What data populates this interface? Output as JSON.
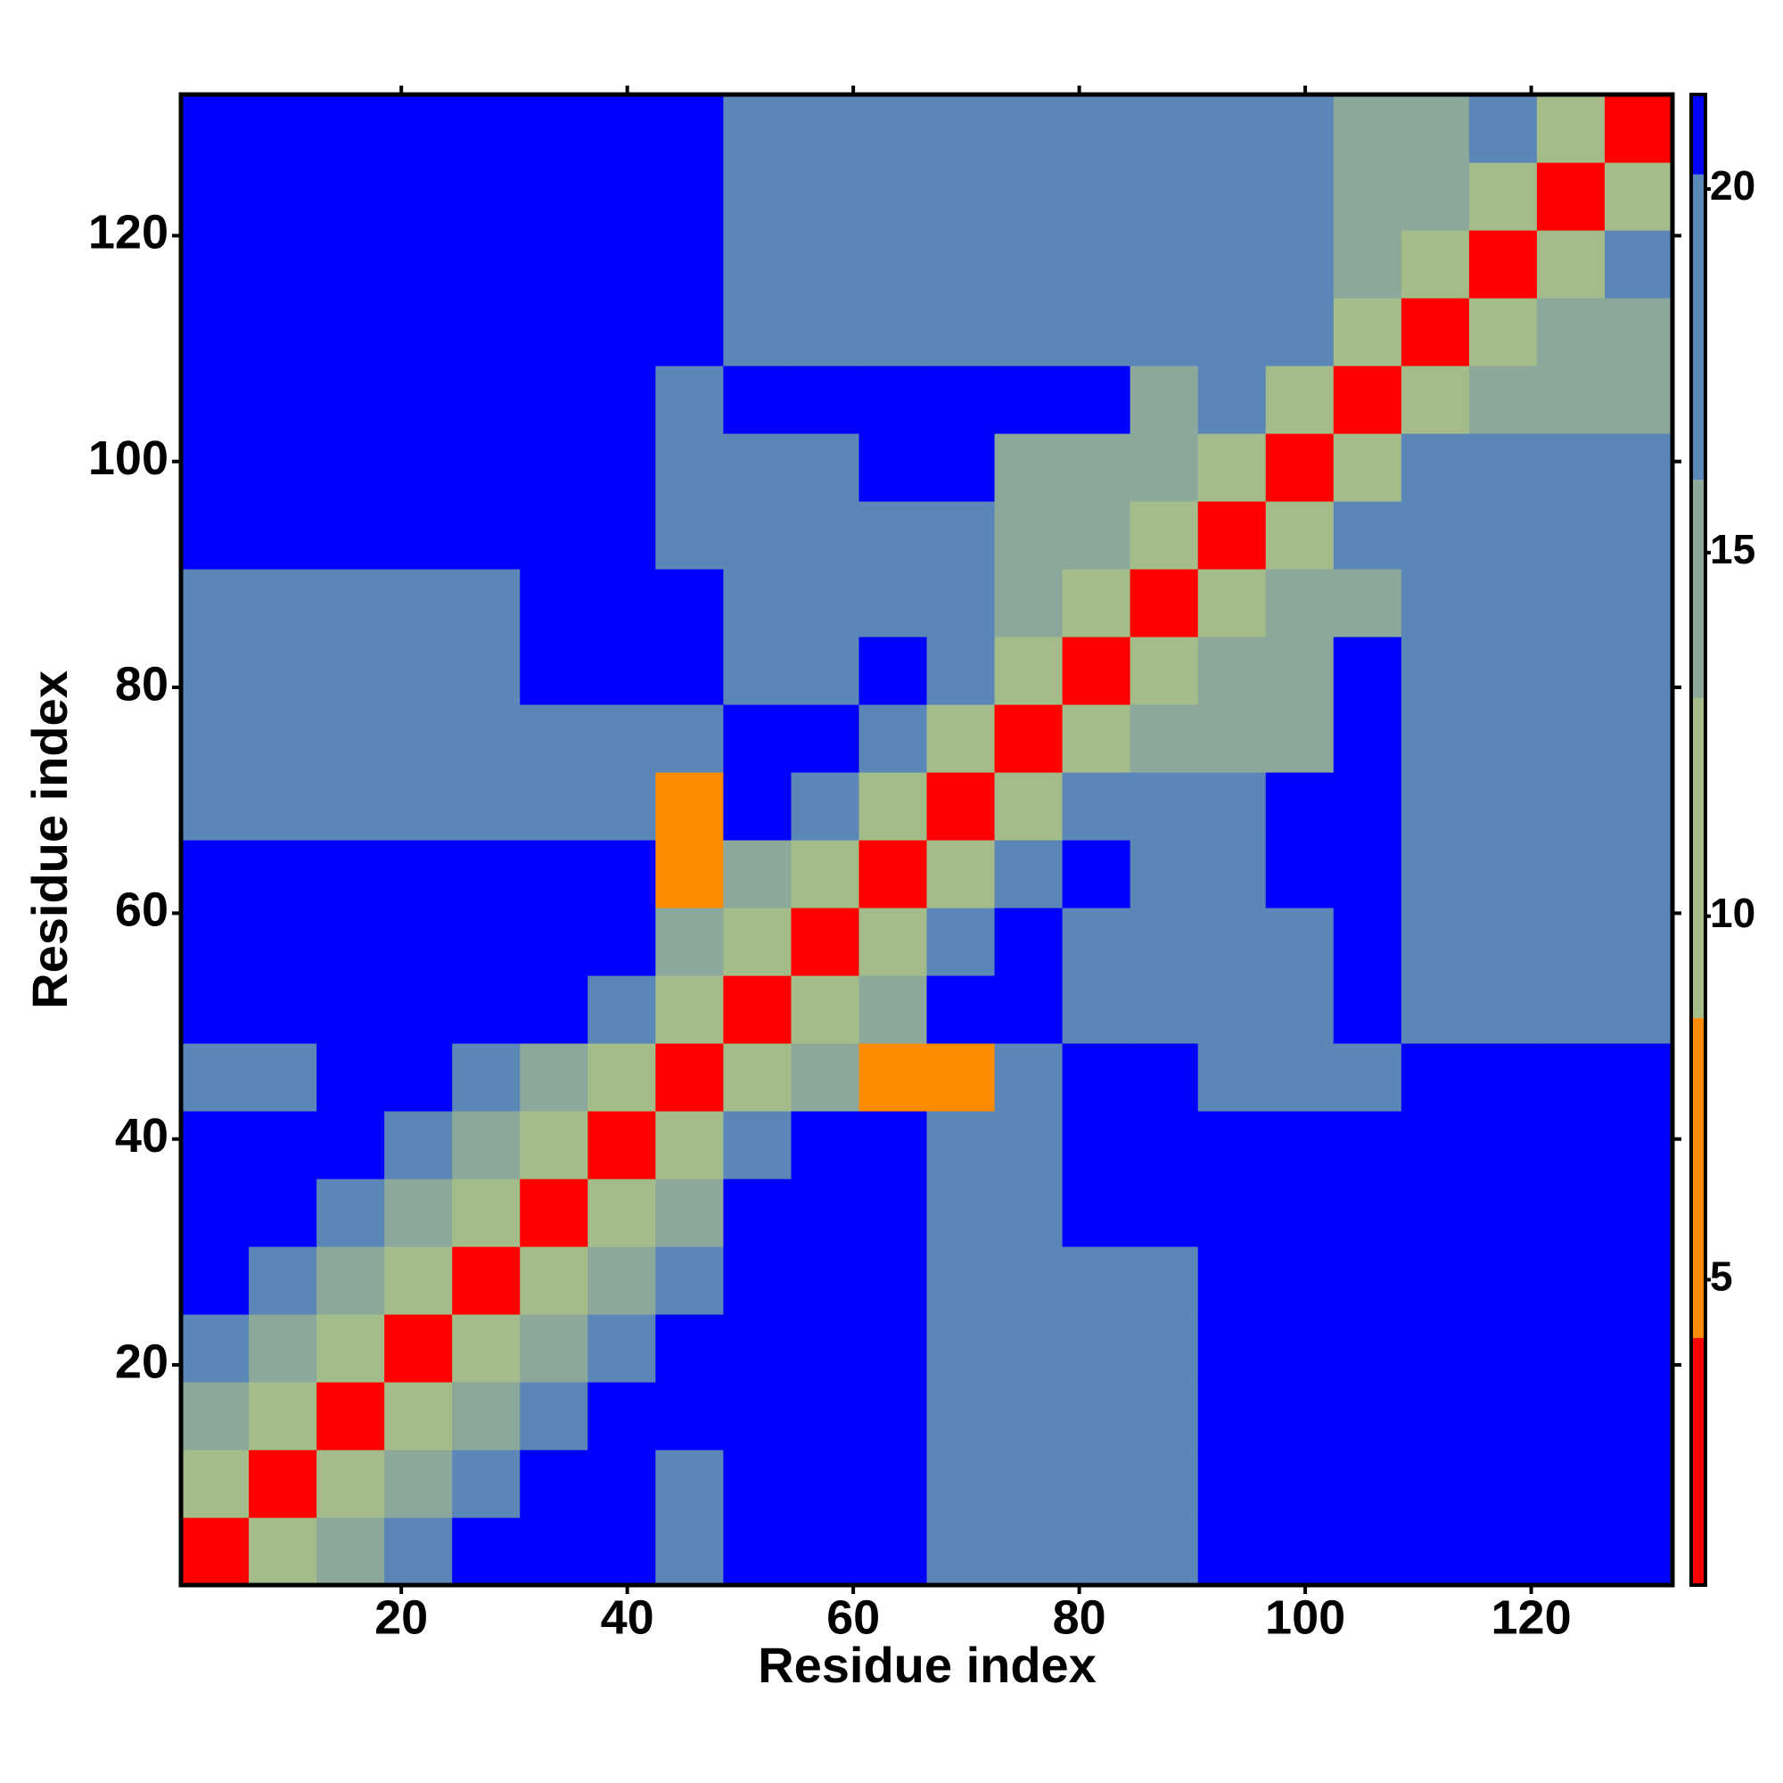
{
  "chart_data": {
    "type": "heatmap",
    "xlabel": "Residue index",
    "ylabel": "Residue index",
    "x_bins": [
      0.5,
      6.5,
      12.5,
      18.5,
      24.5,
      30.5,
      36.5,
      42.5,
      48.5,
      54.5,
      60.5,
      66.5,
      72.5,
      78.5,
      84.5,
      90.5,
      96.5,
      102.5,
      108.5,
      114.5,
      120.5,
      126.5,
      132.5
    ],
    "y_bins": [
      0.5,
      6.5,
      12.5,
      18.5,
      24.5,
      30.5,
      36.5,
      42.5,
      48.5,
      54.5,
      60.5,
      66.5,
      72.5,
      78.5,
      84.5,
      90.5,
      96.5,
      102.5,
      108.5,
      114.5,
      120.5,
      126.5,
      132.5
    ],
    "xlim": [
      0.5,
      132.5
    ],
    "ylim": [
      0.5,
      132.5
    ],
    "xticks": [
      20,
      40,
      60,
      80,
      100,
      120
    ],
    "yticks": [
      20,
      40,
      60,
      80,
      100,
      120
    ],
    "z": [
      [
        3,
        11,
        16,
        18,
        21,
        21,
        21,
        19,
        21,
        21,
        21,
        18,
        18,
        18,
        18,
        21,
        21,
        21,
        21,
        21,
        21,
        21
      ],
      [
        11,
        3,
        11,
        16,
        18,
        21,
        21,
        19,
        21,
        21,
        21,
        18,
        18,
        18,
        18,
        21,
        21,
        21,
        21,
        21,
        21,
        21
      ],
      [
        16,
        11,
        3,
        9,
        16,
        18,
        21,
        21,
        21,
        21,
        21,
        18,
        18,
        18,
        18,
        21,
        21,
        21,
        21,
        21,
        21,
        21
      ],
      [
        18,
        16,
        9,
        3,
        9,
        16,
        18,
        21,
        21,
        21,
        21,
        18,
        18,
        18,
        18,
        21,
        21,
        21,
        21,
        21,
        21,
        21
      ],
      [
        21,
        18,
        16,
        9,
        3,
        9,
        16,
        18,
        21,
        21,
        21,
        18,
        18,
        18,
        18,
        21,
        21,
        21,
        21,
        21,
        21,
        21
      ],
      [
        21,
        21,
        18,
        16,
        9,
        3,
        9,
        16,
        21,
        21,
        21,
        17,
        17,
        21,
        21,
        21,
        21,
        21,
        21,
        21,
        21,
        21
      ],
      [
        21,
        21,
        21,
        18,
        16,
        9,
        3,
        11,
        18,
        21,
        21,
        17,
        17,
        21,
        21,
        21,
        21,
        21,
        21,
        21,
        21,
        21
      ],
      [
        19,
        19,
        21,
        21,
        18,
        16,
        11,
        3,
        11,
        15,
        8,
        8,
        17,
        21,
        21,
        19,
        19,
        19,
        21,
        21,
        21,
        21
      ],
      [
        21,
        21,
        21,
        21,
        21,
        21,
        18,
        11,
        3,
        11,
        14,
        21,
        21,
        19,
        19,
        19,
        19,
        21,
        19,
        19,
        19,
        19
      ],
      [
        21,
        21,
        21,
        21,
        21,
        21,
        21,
        15,
        11,
        3,
        11,
        18,
        21,
        19,
        19,
        19,
        19,
        21,
        19,
        19,
        19,
        19
      ],
      [
        21,
        21,
        21,
        21,
        21,
        21,
        21,
        8,
        14,
        11,
        3,
        11,
        18,
        21,
        17,
        17,
        21,
        21,
        19,
        19,
        19,
        19
      ],
      [
        18,
        18,
        18,
        18,
        18,
        17,
        17,
        8,
        21,
        18,
        11,
        3,
        11,
        18,
        17,
        17,
        21,
        21,
        19,
        19,
        19,
        19
      ],
      [
        18,
        18,
        18,
        18,
        18,
        17,
        17,
        17,
        21,
        21,
        18,
        11,
        3,
        11,
        16,
        16,
        16,
        21,
        19,
        19,
        19,
        19
      ],
      [
        18,
        18,
        18,
        18,
        18,
        21,
        21,
        21,
        19,
        19,
        21,
        18,
        11,
        3,
        9,
        16,
        16,
        21,
        19,
        19,
        19,
        19
      ],
      [
        18,
        18,
        18,
        18,
        18,
        21,
        21,
        21,
        19,
        19,
        17,
        17,
        16,
        9,
        3,
        11,
        15,
        15,
        17,
        17,
        17,
        17
      ],
      [
        21,
        21,
        21,
        21,
        21,
        21,
        21,
        19,
        19,
        19,
        17,
        17,
        16,
        16,
        11,
        3,
        11,
        18,
        17,
        17,
        17,
        17
      ],
      [
        21,
        21,
        21,
        21,
        21,
        21,
        21,
        19,
        19,
        19,
        21,
        21,
        16,
        16,
        15,
        11,
        3,
        11,
        17,
        17,
        17,
        17
      ],
      [
        21,
        21,
        21,
        21,
        21,
        21,
        21,
        19,
        21,
        21,
        21,
        21,
        21,
        21,
        15,
        18,
        11,
        3,
        11,
        16,
        16,
        16
      ],
      [
        21,
        21,
        21,
        21,
        21,
        21,
        21,
        21,
        19,
        19,
        19,
        19,
        19,
        19,
        17,
        17,
        17,
        11,
        3,
        11,
        16,
        16
      ],
      [
        21,
        21,
        21,
        21,
        21,
        21,
        21,
        21,
        19,
        19,
        19,
        19,
        19,
        19,
        17,
        17,
        17,
        16,
        11,
        3,
        11,
        18
      ],
      [
        21,
        21,
        21,
        21,
        21,
        21,
        21,
        21,
        19,
        19,
        19,
        19,
        19,
        19,
        17,
        17,
        17,
        16,
        16,
        11,
        3,
        11
      ],
      [
        21,
        21,
        21,
        21,
        21,
        21,
        21,
        21,
        19,
        19,
        19,
        19,
        19,
        19,
        17,
        17,
        17,
        16,
        16,
        18,
        11,
        3
      ]
    ],
    "colorscale": [
      [
        4.2,
        "#ff0000"
      ],
      [
        8.6,
        "#ff8c00"
      ],
      [
        13,
        "#a4bc8a"
      ],
      [
        16,
        "#8ba89a"
      ],
      [
        20.2,
        "#5a86b8"
      ],
      [
        21.3,
        "#0000ff"
      ]
    ],
    "clim": [
      0.8,
      21.3
    ],
    "cticks": [
      5,
      10,
      15,
      20
    ]
  }
}
